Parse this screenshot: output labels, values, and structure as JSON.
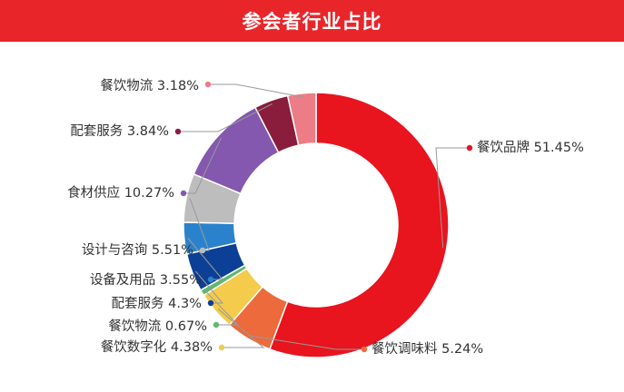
{
  "header": {
    "title": "参会者行业占比"
  },
  "chart_data": {
    "type": "pie",
    "donut": true,
    "title": "参会者行业占比",
    "slices": [
      {
        "label": "餐饮品牌",
        "value": 51.45,
        "display": "51.45%",
        "color": "#e8141e"
      },
      {
        "label": "餐饮调味料",
        "value": 5.24,
        "display": "5.24%",
        "color": "#ec6a3c"
      },
      {
        "label": "餐饮数字化",
        "value": 4.38,
        "display": "4.38%",
        "color": "#f4cb4a"
      },
      {
        "label": "餐饮物流",
        "value": 0.67,
        "display": "0.67%",
        "color": "#5fb870"
      },
      {
        "label": "配套服务",
        "value": 4.3,
        "display": "4.3%",
        "color": "#0c3f96"
      },
      {
        "label": "设备及用品",
        "value": 3.55,
        "display": "3.55%",
        "color": "#2b82cc"
      },
      {
        "label": "设计与咨询",
        "value": 5.51,
        "display": "5.51%",
        "color": "#bdbdbd"
      },
      {
        "label": "食材供应",
        "value": 10.27,
        "display": "10.27%",
        "color": "#8458ae"
      },
      {
        "label": "配套服务",
        "value": 3.84,
        "display": "3.84%",
        "color": "#8a1d3c"
      },
      {
        "label": "餐饮物流",
        "value": 3.18,
        "display": "3.18%",
        "color": "#ec7d86"
      }
    ]
  }
}
